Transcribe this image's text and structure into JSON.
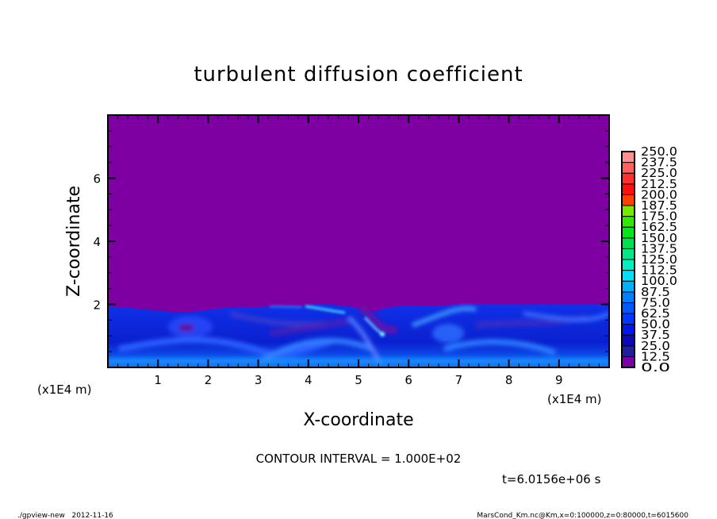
{
  "chart_data": {
    "type": "heatmap",
    "title": "turbulent diffusion coefficient",
    "xlabel": "X-coordinate",
    "ylabel": "Z-coordinate",
    "x_unit_label": "(x1E4 m)",
    "z_unit_label": "(x1E4 m)",
    "xlim": [
      0,
      10
    ],
    "ylim": [
      0,
      8
    ],
    "x_ticks": [
      1,
      2,
      3,
      4,
      5,
      6,
      7,
      8,
      9
    ],
    "y_ticks": [
      2,
      4,
      6
    ],
    "x_minor_step": 0.2,
    "y_minor_step": 0.5,
    "field_summary": {
      "above_boundary_value": 0.0,
      "boundary_layer_top_z": 2.0,
      "boundary_layer_value_range": [
        12.5,
        87.5
      ]
    },
    "colorbar": {
      "levels": [
        "0.0",
        "12.5",
        "25.0",
        "37.5",
        "50.0",
        "62.5",
        "75.0",
        "87.5",
        "100.0",
        "112.5",
        "125.0",
        "137.5",
        "150.0",
        "162.5",
        "175.0",
        "187.5",
        "200.0",
        "212.5",
        "225.0",
        "237.5",
        "250.0"
      ],
      "colors": [
        "#7a00a8",
        "#20209a",
        "#0a0ab8",
        "#0018e8",
        "#0038ff",
        "#0058ff",
        "#0080ff",
        "#00b0ff",
        "#00e0f8",
        "#00f0c0",
        "#00e888",
        "#00e050",
        "#00e818",
        "#30e800",
        "#78e800",
        "#b8f000",
        "#f0f000",
        "#ffd000",
        "#ffa000",
        "#ff7000"
      ],
      "top_colors": [
        "#ff4000",
        "#ff1010",
        "#ff3030",
        "#ff6060",
        "#ff9090"
      ]
    },
    "annotations": {
      "contour_interval": "CONTOUR INTERVAL = 1.000E+02",
      "time": "t=6.0156e+06 s"
    }
  },
  "footer": {
    "left": "./gpview-new   2012-11-16",
    "right": "MarsCond_Km.nc@Km,x=0:100000,z=0:80000,t=6015600"
  }
}
